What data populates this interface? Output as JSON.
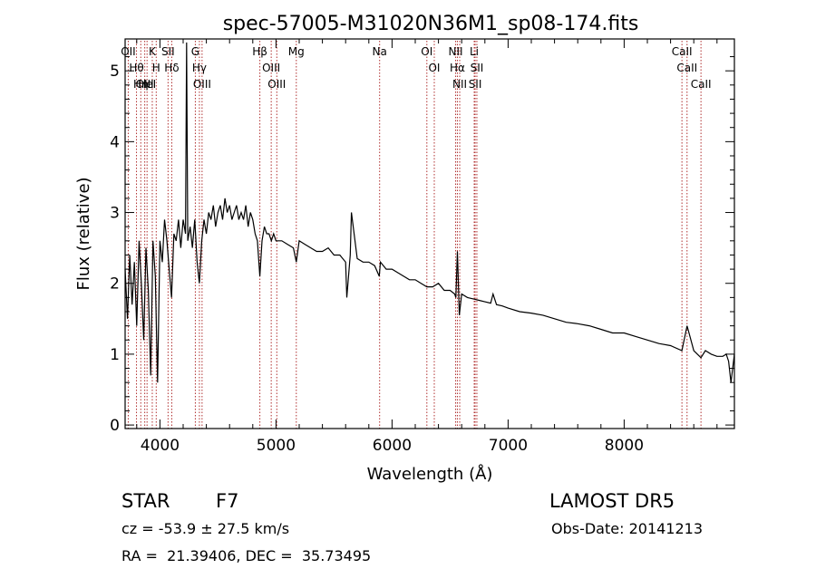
{
  "chart_data": {
    "type": "line",
    "title": "spec-57005-M31020N36M1_sp08-174.fits",
    "xlabel": "Wavelength (Å)",
    "ylabel": "Flux (relative)",
    "xlim": [
      3700,
      8950
    ],
    "ylim": [
      -0.05,
      5.45
    ],
    "xticks": [
      4000,
      5000,
      6000,
      7000,
      8000
    ],
    "yticks": [
      0,
      1,
      2,
      3,
      4,
      5
    ],
    "grid": false,
    "series": [
      {
        "x": [
          3700,
          3720,
          3740,
          3760,
          3780,
          3800,
          3820,
          3840,
          3860,
          3880,
          3900,
          3920,
          3940,
          3960,
          3980,
          4000,
          4020,
          4040,
          4060,
          4080,
          4100,
          4120,
          4140,
          4160,
          4180,
          4200,
          4220,
          4230,
          4240,
          4260,
          4280,
          4300,
          4320,
          4340,
          4360,
          4380,
          4400,
          4420,
          4440,
          4460,
          4480,
          4500,
          4520,
          4540,
          4560,
          4580,
          4600,
          4620,
          4640,
          4660,
          4680,
          4700,
          4720,
          4740,
          4760,
          4780,
          4800,
          4820,
          4840,
          4861,
          4880,
          4900,
          4920,
          4940,
          4960,
          4980,
          5000,
          5050,
          5100,
          5150,
          5175,
          5200,
          5250,
          5300,
          5350,
          5400,
          5450,
          5500,
          5550,
          5600,
          5610,
          5640,
          5650,
          5700,
          5750,
          5800,
          5850,
          5890,
          5900,
          5950,
          6000,
          6050,
          6100,
          6150,
          6200,
          6250,
          6300,
          6350,
          6400,
          6450,
          6500,
          6540,
          6550,
          6563,
          6580,
          6600,
          6650,
          6700,
          6750,
          6800,
          6850,
          6870,
          6900,
          6950,
          7000,
          7100,
          7200,
          7300,
          7400,
          7500,
          7600,
          7700,
          7800,
          7900,
          8000,
          8100,
          8200,
          8300,
          8400,
          8498,
          8542,
          8600,
          8662,
          8700,
          8750,
          8800,
          8850,
          8880,
          8900,
          8920,
          8950
        ],
        "values": [
          2.2,
          1.5,
          2.4,
          1.7,
          2.3,
          1.4,
          2.6,
          2.0,
          1.2,
          2.5,
          1.9,
          0.7,
          2.6,
          2.1,
          0.6,
          2.6,
          2.3,
          2.9,
          2.6,
          2.2,
          1.8,
          2.7,
          2.6,
          2.9,
          2.5,
          2.9,
          2.7,
          5.4,
          2.6,
          2.8,
          2.5,
          2.9,
          2.3,
          2.0,
          2.6,
          2.9,
          2.7,
          3.0,
          2.9,
          3.1,
          2.8,
          3.0,
          3.1,
          2.9,
          3.2,
          3.0,
          3.1,
          2.9,
          3.0,
          3.1,
          2.9,
          3.0,
          2.9,
          3.1,
          2.8,
          3.0,
          2.9,
          2.7,
          2.6,
          2.1,
          2.6,
          2.8,
          2.7,
          2.7,
          2.6,
          2.7,
          2.6,
          2.6,
          2.55,
          2.5,
          2.3,
          2.6,
          2.55,
          2.5,
          2.45,
          2.45,
          2.5,
          2.4,
          2.4,
          2.3,
          1.8,
          2.4,
          3.0,
          2.35,
          2.3,
          2.3,
          2.25,
          2.1,
          2.3,
          2.2,
          2.2,
          2.15,
          2.1,
          2.05,
          2.05,
          2.0,
          1.95,
          1.95,
          2.0,
          1.9,
          1.9,
          1.85,
          1.8,
          2.45,
          1.55,
          1.85,
          1.8,
          1.78,
          1.76,
          1.74,
          1.72,
          1.85,
          1.7,
          1.68,
          1.65,
          1.6,
          1.58,
          1.55,
          1.5,
          1.45,
          1.43,
          1.4,
          1.35,
          1.3,
          1.3,
          1.25,
          1.2,
          1.15,
          1.12,
          1.05,
          1.4,
          1.05,
          0.95,
          1.05,
          1.0,
          0.97,
          0.97,
          1.0,
          0.9,
          0.6,
          1.0
        ]
      }
    ],
    "lines": [
      {
        "label": "Hθ",
        "x": 3798
      },
      {
        "label": "OII",
        "x": 3727
      },
      {
        "label": "OIII",
        "x": 3869
      },
      {
        "label": "Hη",
        "x": 3835
      },
      {
        "label": "HeI",
        "x": 3889
      },
      {
        "label": "K",
        "x": 3934
      },
      {
        "label": "H",
        "x": 3968
      },
      {
        "label": "Hδ",
        "x": 4102
      },
      {
        "label": "SII",
        "x": 4070
      },
      {
        "label": "OIII",
        "x": 4363
      },
      {
        "label": "Hγ",
        "x": 4340
      },
      {
        "label": "G",
        "x": 4305
      },
      {
        "label": "Hβ",
        "x": 4861
      },
      {
        "label": "OIII",
        "x": 5007
      },
      {
        "label": "OIII",
        "x": 4959
      },
      {
        "label": "Mg",
        "x": 5175
      },
      {
        "label": "Na",
        "x": 5893
      },
      {
        "label": "OI",
        "x": 6300
      },
      {
        "label": "OI",
        "x": 6364
      },
      {
        "label": "Hα",
        "x": 6563
      },
      {
        "label": "NII",
        "x": 6548
      },
      {
        "label": "NII",
        "x": 6583
      },
      {
        "label": "SII",
        "x": 6716
      },
      {
        "label": "Li",
        "x": 6708
      },
      {
        "label": "SII",
        "x": 6731
      },
      {
        "label": "CaII",
        "x": 8498
      },
      {
        "label": "CaII",
        "x": 8542
      },
      {
        "label": "CaII",
        "x": 8662
      }
    ]
  },
  "info": {
    "object_class": "STAR",
    "subclass": "F7",
    "survey": "LAMOST DR5",
    "redshift": "cz = -53.9 ± 27.5 km/s",
    "obs_date": "Obs-Date: 20141213",
    "coords": "RA =  21.39406, DEC =  35.73495"
  },
  "colors": {
    "spectrum": "#000000",
    "line_markers": "#b03030",
    "axes": "#000000",
    "background": "#ffffff"
  }
}
